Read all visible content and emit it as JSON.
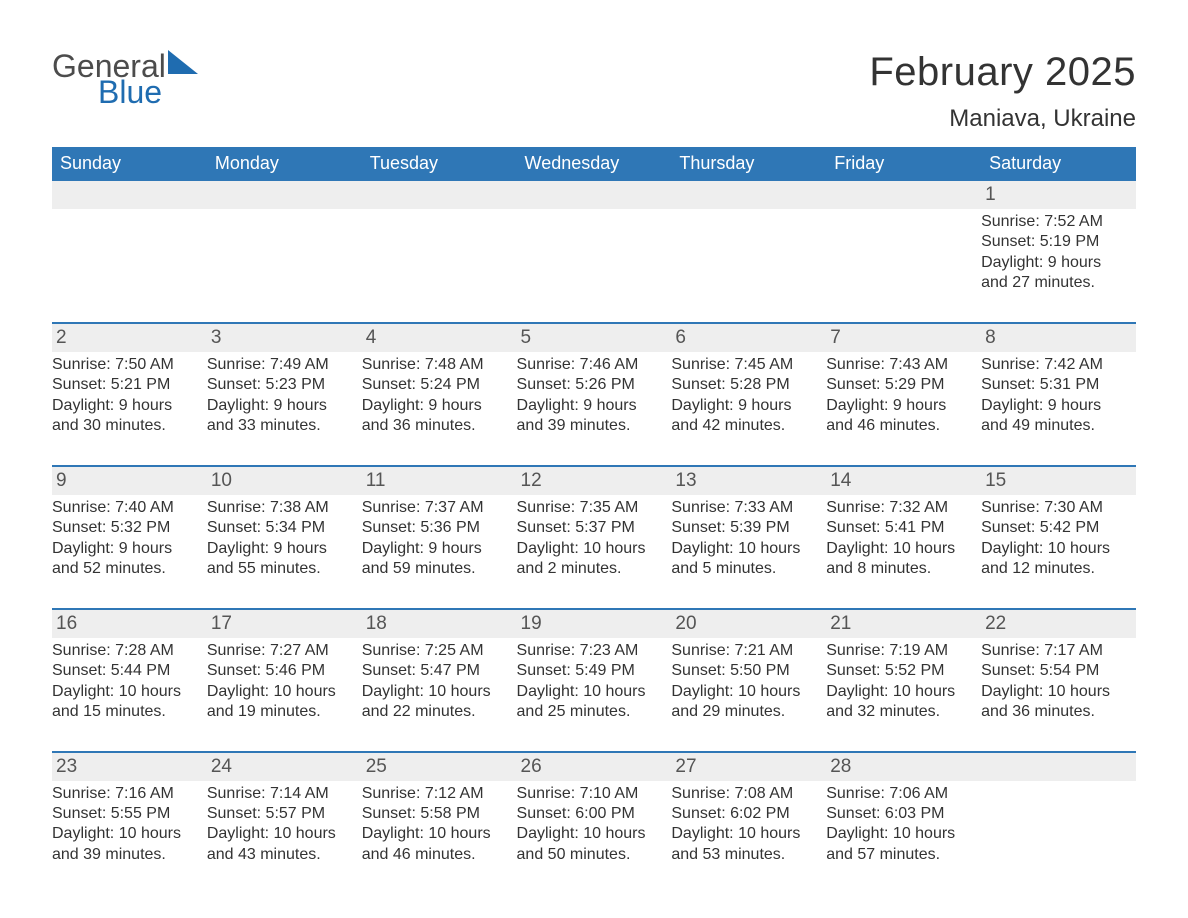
{
  "logo": {
    "general": "General",
    "blue": "Blue"
  },
  "title": "February 2025",
  "location": "Maniava, Ukraine",
  "colors": {
    "header_bg": "#2f77b6",
    "header_text": "#ffffff",
    "daynum_bg": "#eeeeee",
    "daynum_border": "#2f77b6",
    "body_text": "#333333",
    "logo_gray": "#4c4c4c",
    "logo_blue": "#1f6cb0",
    "page_bg": "#ffffff"
  },
  "day_headers": [
    "Sunday",
    "Monday",
    "Tuesday",
    "Wednesday",
    "Thursday",
    "Friday",
    "Saturday"
  ],
  "weeks": [
    {
      "nums": [
        "",
        "",
        "",
        "",
        "",
        "",
        "1"
      ],
      "cells": [
        "",
        "",
        "",
        "",
        "",
        "",
        "Sunrise: 7:52 AM\nSunset: 5:19 PM\nDaylight: 9 hours and 27 minutes."
      ]
    },
    {
      "nums": [
        "2",
        "3",
        "4",
        "5",
        "6",
        "7",
        "8"
      ],
      "cells": [
        "Sunrise: 7:50 AM\nSunset: 5:21 PM\nDaylight: 9 hours and 30 minutes.",
        "Sunrise: 7:49 AM\nSunset: 5:23 PM\nDaylight: 9 hours and 33 minutes.",
        "Sunrise: 7:48 AM\nSunset: 5:24 PM\nDaylight: 9 hours and 36 minutes.",
        "Sunrise: 7:46 AM\nSunset: 5:26 PM\nDaylight: 9 hours and 39 minutes.",
        "Sunrise: 7:45 AM\nSunset: 5:28 PM\nDaylight: 9 hours and 42 minutes.",
        "Sunrise: 7:43 AM\nSunset: 5:29 PM\nDaylight: 9 hours and 46 minutes.",
        "Sunrise: 7:42 AM\nSunset: 5:31 PM\nDaylight: 9 hours and 49 minutes."
      ]
    },
    {
      "nums": [
        "9",
        "10",
        "11",
        "12",
        "13",
        "14",
        "15"
      ],
      "cells": [
        "Sunrise: 7:40 AM\nSunset: 5:32 PM\nDaylight: 9 hours and 52 minutes.",
        "Sunrise: 7:38 AM\nSunset: 5:34 PM\nDaylight: 9 hours and 55 minutes.",
        "Sunrise: 7:37 AM\nSunset: 5:36 PM\nDaylight: 9 hours and 59 minutes.",
        "Sunrise: 7:35 AM\nSunset: 5:37 PM\nDaylight: 10 hours and 2 minutes.",
        "Sunrise: 7:33 AM\nSunset: 5:39 PM\nDaylight: 10 hours and 5 minutes.",
        "Sunrise: 7:32 AM\nSunset: 5:41 PM\nDaylight: 10 hours and 8 minutes.",
        "Sunrise: 7:30 AM\nSunset: 5:42 PM\nDaylight: 10 hours and 12 minutes."
      ]
    },
    {
      "nums": [
        "16",
        "17",
        "18",
        "19",
        "20",
        "21",
        "22"
      ],
      "cells": [
        "Sunrise: 7:28 AM\nSunset: 5:44 PM\nDaylight: 10 hours and 15 minutes.",
        "Sunrise: 7:27 AM\nSunset: 5:46 PM\nDaylight: 10 hours and 19 minutes.",
        "Sunrise: 7:25 AM\nSunset: 5:47 PM\nDaylight: 10 hours and 22 minutes.",
        "Sunrise: 7:23 AM\nSunset: 5:49 PM\nDaylight: 10 hours and 25 minutes.",
        "Sunrise: 7:21 AM\nSunset: 5:50 PM\nDaylight: 10 hours and 29 minutes.",
        "Sunrise: 7:19 AM\nSunset: 5:52 PM\nDaylight: 10 hours and 32 minutes.",
        "Sunrise: 7:17 AM\nSunset: 5:54 PM\nDaylight: 10 hours and 36 minutes."
      ]
    },
    {
      "nums": [
        "23",
        "24",
        "25",
        "26",
        "27",
        "28",
        ""
      ],
      "cells": [
        "Sunrise: 7:16 AM\nSunset: 5:55 PM\nDaylight: 10 hours and 39 minutes.",
        "Sunrise: 7:14 AM\nSunset: 5:57 PM\nDaylight: 10 hours and 43 minutes.",
        "Sunrise: 7:12 AM\nSunset: 5:58 PM\nDaylight: 10 hours and 46 minutes.",
        "Sunrise: 7:10 AM\nSunset: 6:00 PM\nDaylight: 10 hours and 50 minutes.",
        "Sunrise: 7:08 AM\nSunset: 6:02 PM\nDaylight: 10 hours and 53 minutes.",
        "Sunrise: 7:06 AM\nSunset: 6:03 PM\nDaylight: 10 hours and 57 minutes.",
        ""
      ]
    }
  ]
}
